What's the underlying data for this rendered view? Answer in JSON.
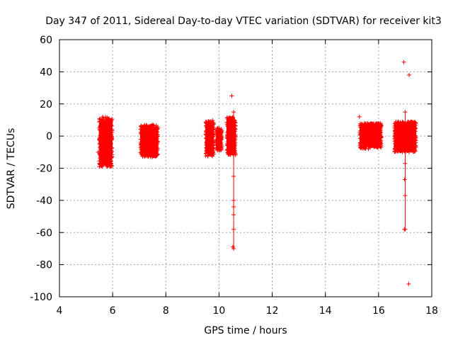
{
  "chart_data": {
    "type": "scatter",
    "title": "Day 347 of 2011, Sidereal Day-to-day VTEC variation (SDTVAR) for receiver kit3",
    "xlabel": "GPS time / hours",
    "ylabel": "SDTVAR / TECUs",
    "xlim": [
      4,
      18
    ],
    "ylim": [
      -100,
      60
    ],
    "xticks": [
      "4",
      "6",
      "8",
      "10",
      "12",
      "14",
      "16",
      "18"
    ],
    "yticks": [
      "-100",
      "-80",
      "-60",
      "-40",
      "-20",
      "0",
      "20",
      "40",
      "60"
    ],
    "grid": true,
    "series_color": "#ff0000",
    "clusters": [
      {
        "x_start": 5.5,
        "x_end": 5.98,
        "y_min": -19,
        "y_max": 12,
        "count": 120
      },
      {
        "x_start": 7.05,
        "x_end": 7.7,
        "y_min": -13,
        "y_max": 7,
        "count": 110
      },
      {
        "x_start": 9.5,
        "x_end": 9.8,
        "y_min": -13,
        "y_max": 10,
        "count": 60
      },
      {
        "x_start": 9.9,
        "x_end": 10.1,
        "y_min": -9,
        "y_max": 5,
        "count": 40
      },
      {
        "x_start": 10.3,
        "x_end": 10.62,
        "y_min": -12,
        "y_max": 12,
        "count": 70
      },
      {
        "x_start": 15.3,
        "x_end": 15.65,
        "y_min": -8,
        "y_max": 8,
        "count": 60
      },
      {
        "x_start": 15.65,
        "x_end": 16.1,
        "y_min": -7,
        "y_max": 8,
        "count": 110
      },
      {
        "x_start": 16.6,
        "x_end": 17.4,
        "y_min": -10,
        "y_max": 9,
        "count": 180
      }
    ],
    "outliers": [
      {
        "x": 5.45,
        "y": -10
      },
      {
        "x": 5.6,
        "y": -19
      },
      {
        "x": 5.95,
        "y": -17
      },
      {
        "x": 10.48,
        "y": 25
      },
      {
        "x": 10.55,
        "y": 15
      },
      {
        "x": 10.55,
        "y": -25
      },
      {
        "x": 10.55,
        "y": -40
      },
      {
        "x": 10.55,
        "y": -44
      },
      {
        "x": 10.55,
        "y": -49
      },
      {
        "x": 10.55,
        "y": -58
      },
      {
        "x": 10.52,
        "y": -69
      },
      {
        "x": 10.55,
        "y": -70
      },
      {
        "x": 15.28,
        "y": 12
      },
      {
        "x": 16.95,
        "y": 46
      },
      {
        "x": 17.15,
        "y": 38
      },
      {
        "x": 17.0,
        "y": 15
      },
      {
        "x": 17.0,
        "y": -17
      },
      {
        "x": 16.98,
        "y": -27
      },
      {
        "x": 17.0,
        "y": -37
      },
      {
        "x": 16.97,
        "y": -58
      },
      {
        "x": 17.0,
        "y": -58
      },
      {
        "x": 17.13,
        "y": -92
      }
    ],
    "vertical_bars": [
      {
        "x": 10.55,
        "y_from": 15,
        "y_to": -70
      },
      {
        "x": 17.0,
        "y_from": 15,
        "y_to": -58
      }
    ]
  }
}
